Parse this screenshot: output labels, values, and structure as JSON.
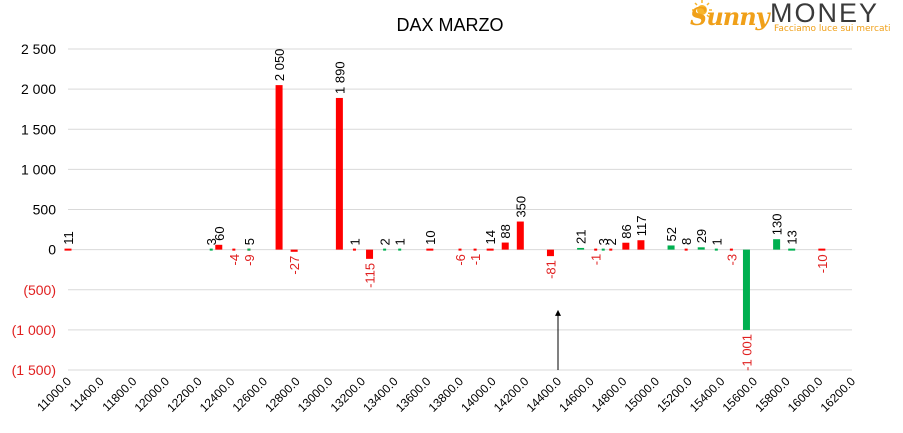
{
  "logo": {
    "brand_part1": "Sunny",
    "brand_part2": "MONEY",
    "tagline": "Facciamo luce sui mercati"
  },
  "colors": {
    "positive": "#ff0000",
    "negative": "#00b050",
    "negative_label": "#e02020",
    "axis_text": "#000000"
  },
  "chart_data": {
    "type": "bar",
    "title": "DAX MARZO",
    "xlabel": "",
    "ylabel": "",
    "ylim": [
      -1500,
      2500
    ],
    "yticks": [
      2500,
      2000,
      1500,
      1000,
      500,
      0,
      -500,
      -1000,
      -1500
    ],
    "ytick_labels": [
      "2 500",
      "2 000",
      "1 500",
      "1 000",
      "500",
      "0",
      "(500)",
      "(1 000)",
      "(1 500)"
    ],
    "xlim": [
      11000,
      16200
    ],
    "xticks": [
      "11000.0",
      "11400.0",
      "11800.0",
      "12000.0",
      "12200.0",
      "12400.0",
      "12600.0",
      "12800.0",
      "13000.0",
      "13200.0",
      "13400.0",
      "13600.0",
      "13800.0",
      "14000.0",
      "14200.0",
      "14400.0",
      "14600.0",
      "14800.0",
      "15000.0",
      "15200.0",
      "15400.0",
      "15600.0",
      "15800.0",
      "16000.0",
      "16200.0"
    ],
    "grid": true,
    "legend": "none",
    "series": [
      {
        "color": "#ff0000",
        "points": [
          {
            "x": 11000,
            "value": 11,
            "label": "11"
          },
          {
            "x": 12000,
            "value": 60,
            "label": "60"
          },
          {
            "x": 12400,
            "value": 2050,
            "label": "2 050"
          },
          {
            "x": 12800,
            "value": 1890,
            "label": "1 890"
          },
          {
            "x": 12900,
            "value": 1,
            "label": "1"
          },
          {
            "x": 13400,
            "value": 10,
            "label": "10"
          },
          {
            "x": 13800,
            "value": 14,
            "label": "14"
          },
          {
            "x": 13900,
            "value": 88,
            "label": "88"
          },
          {
            "x": 14000,
            "value": 350,
            "label": "350"
          },
          {
            "x": 14600,
            "value": 2,
            "label": "2"
          },
          {
            "x": 14700,
            "value": 86,
            "label": "86"
          },
          {
            "x": 14800,
            "value": 117,
            "label": "117"
          },
          {
            "x": 15100,
            "value": 8,
            "label": "8"
          },
          {
            "x": 12500,
            "value": -27,
            "label": "-27"
          },
          {
            "x": 12200,
            "value": -9,
            "label": "-9"
          },
          {
            "x": 12100,
            "value": -4,
            "label": "-4"
          },
          {
            "x": 13000,
            "value": -115,
            "label": "-115"
          },
          {
            "x": 13600,
            "value": -6,
            "label": "-6"
          },
          {
            "x": 13700,
            "value": -1,
            "label": "-1"
          },
          {
            "x": 14200,
            "value": -81,
            "label": "-81"
          },
          {
            "x": 14500,
            "value": -1,
            "label": "-1"
          },
          {
            "x": 15400,
            "value": -3,
            "label": "-3"
          },
          {
            "x": 16000,
            "value": -10,
            "label": "-10"
          }
        ]
      },
      {
        "color": "#00b050",
        "points": [
          {
            "x": 11950,
            "value": 3,
            "label": "3"
          },
          {
            "x": 12200,
            "value": 5,
            "label": "5"
          },
          {
            "x": 13100,
            "value": 2,
            "label": "2"
          },
          {
            "x": 13200,
            "value": 1,
            "label": "1"
          },
          {
            "x": 14400,
            "value": 21,
            "label": "21"
          },
          {
            "x": 14550,
            "value": 3,
            "label": "3"
          },
          {
            "x": 15000,
            "value": 52,
            "label": "52"
          },
          {
            "x": 15200,
            "value": 29,
            "label": "29"
          },
          {
            "x": 15300,
            "value": 1,
            "label": "1"
          },
          {
            "x": 15500,
            "value": -1001,
            "label": "-1 001"
          },
          {
            "x": 15700,
            "value": 130,
            "label": "130"
          },
          {
            "x": 15800,
            "value": 13,
            "label": "13"
          }
        ]
      }
    ],
    "annotation": {
      "type": "arrow",
      "x": 14250,
      "from_value": -1500,
      "to_value": -750
    }
  }
}
